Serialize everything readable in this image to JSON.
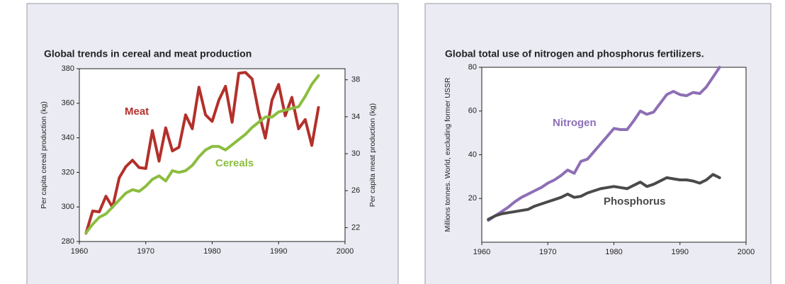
{
  "chart_data": [
    {
      "type": "line",
      "title": "Global trends in cereal and meat production",
      "x": [
        1961,
        1962,
        1963,
        1964,
        1965,
        1966,
        1967,
        1968,
        1969,
        1970,
        1971,
        1972,
        1973,
        1974,
        1975,
        1976,
        1977,
        1978,
        1979,
        1980,
        1981,
        1982,
        1983,
        1984,
        1985,
        1986,
        1987,
        1988,
        1989,
        1990,
        1991,
        1992,
        1993,
        1994,
        1995,
        1996
      ],
      "xlim": [
        1960,
        2000
      ],
      "xticks": [
        1960,
        1970,
        1980,
        1990,
        2000
      ],
      "ylabel": "Per capita cereal production (kg)",
      "ylim": [
        280,
        380
      ],
      "yticks": [
        280,
        300,
        320,
        340,
        360,
        380
      ],
      "y2label": "Per capita meat production (kg)",
      "y2lim": [
        20.5,
        39.2
      ],
      "y2ticks": [
        22,
        26,
        30,
        34,
        38
      ],
      "series": [
        {
          "name": "Meat",
          "color": "#b3302a",
          "axis": "y2",
          "values": [
            21.4,
            23.8,
            23.7,
            25.4,
            24.2,
            27.4,
            28.6,
            29.3,
            28.5,
            28.4,
            32.5,
            29.2,
            32.8,
            30.3,
            30.7,
            34.2,
            32.7,
            37.2,
            34.2,
            33.5,
            35.8,
            37.3,
            33.4,
            38.7,
            38.8,
            38.1,
            34.5,
            31.7,
            35.8,
            37.5,
            34.1,
            36.1,
            32.7,
            33.7,
            30.9,
            35.0
          ]
        },
        {
          "name": "Cereals",
          "color": "#8cbd3f",
          "values": [
            285,
            290,
            294,
            296,
            300,
            304,
            308,
            310,
            309,
            312,
            316,
            318,
            315,
            321,
            320,
            321,
            324,
            329,
            333,
            335,
            335,
            333,
            336,
            339,
            342,
            346,
            349,
            352,
            352,
            355,
            356,
            357,
            358,
            364,
            371,
            376
          ]
        }
      ]
    },
    {
      "type": "line",
      "title": "Global total use of nitrogen and phosphorus fertilizers.",
      "x": [
        1961,
        1962,
        1963,
        1964,
        1965,
        1966,
        1967,
        1968,
        1969,
        1970,
        1971,
        1972,
        1973,
        1974,
        1975,
        1976,
        1977,
        1978,
        1979,
        1980,
        1981,
        1982,
        1983,
        1984,
        1985,
        1986,
        1987,
        1988,
        1989,
        1990,
        1991,
        1992,
        1993,
        1994,
        1995,
        1996
      ],
      "xlim": [
        1960,
        2000
      ],
      "xticks": [
        1960,
        1970,
        1980,
        1990,
        2000
      ],
      "ylabel": "Millions tonnes. World, excluding former USSR",
      "ylim": [
        0,
        80
      ],
      "yticks": [
        20,
        40,
        60,
        80
      ],
      "series": [
        {
          "name": "Nitrogen",
          "color": "#8e6fb5",
          "values": [
            10,
            12,
            14,
            16,
            18.5,
            20.5,
            22,
            23.5,
            25,
            27,
            28.5,
            30.5,
            33,
            31.5,
            37,
            38,
            41.5,
            45,
            48.5,
            52,
            51.5,
            51.5,
            55.5,
            60,
            58.5,
            59.5,
            63.5,
            67.5,
            69,
            67.5,
            67,
            68.5,
            68,
            71,
            75.5,
            80
          ]
        },
        {
          "name": "Phosphorus",
          "color": "#4a4a4a",
          "values": [
            10.5,
            12,
            13,
            13.5,
            14,
            14.5,
            15,
            16.5,
            17.5,
            18.5,
            19.5,
            20.5,
            22,
            20.5,
            21,
            22.5,
            23.5,
            24.5,
            25,
            25.5,
            25,
            24.5,
            26,
            27.5,
            25.5,
            26.5,
            28,
            29.5,
            29,
            28.5,
            28.5,
            28,
            27,
            28.5,
            31,
            29.5
          ]
        }
      ]
    }
  ]
}
